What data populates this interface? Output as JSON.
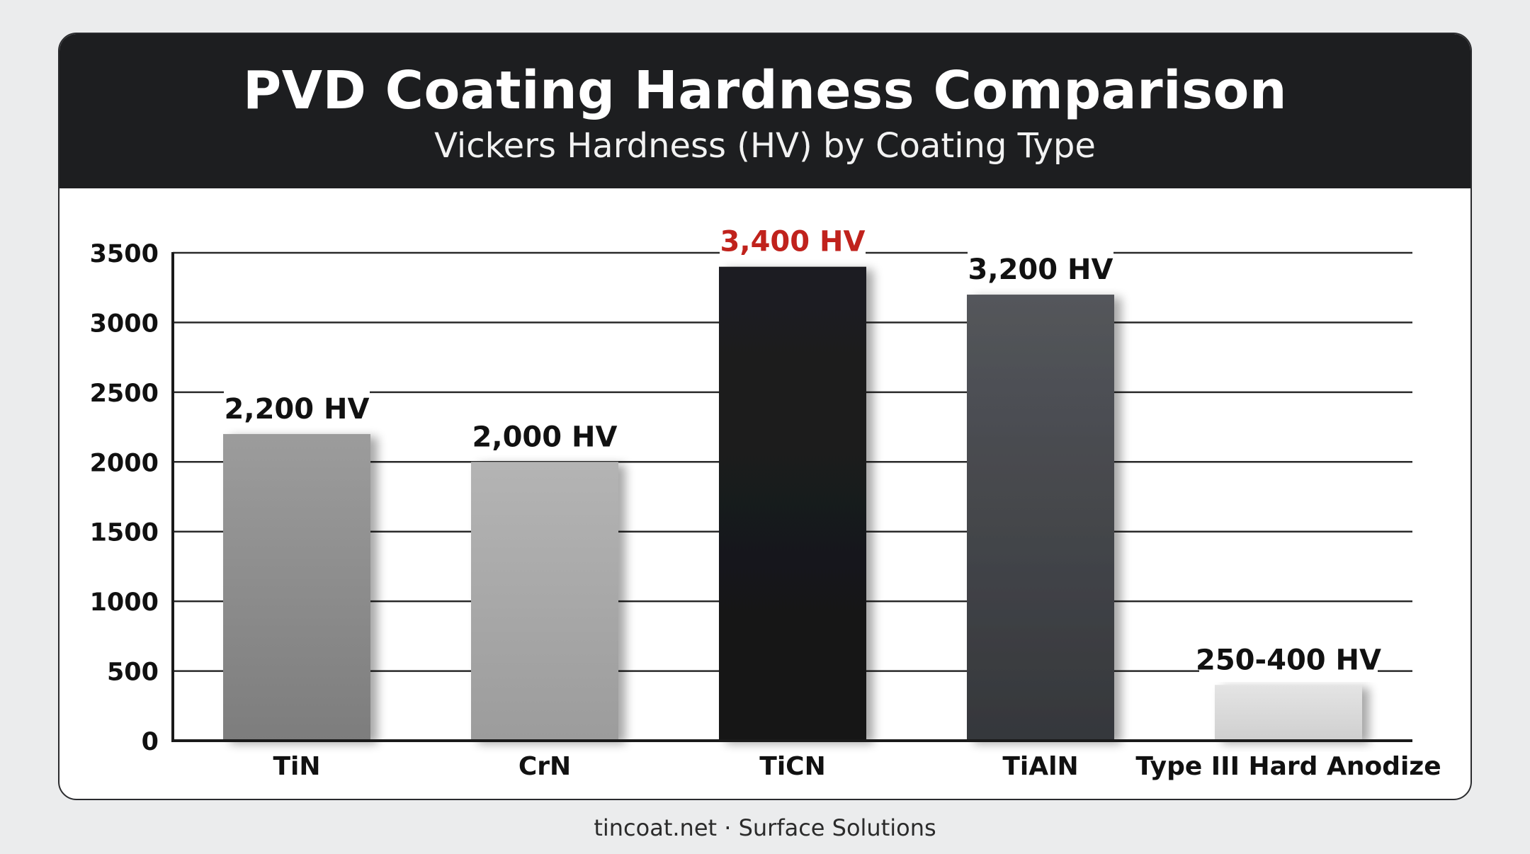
{
  "header": {
    "title": "PVD Coating Hardness Comparison",
    "subtitle": "Vickers Hardness (HV) by Coating Type"
  },
  "footer": {
    "text": "tincoat.net · Surface Solutions"
  },
  "colors": {
    "header_bg": "#1d1e20",
    "gridline": "#2a2a2a",
    "highlight_label": "#c0221c",
    "label": "#111111"
  },
  "chart_data": {
    "type": "bar",
    "title": "PVD Coating Hardness Comparison",
    "subtitle": "Vickers Hardness (HV) by Coating Type",
    "xlabel": "",
    "ylabel": "",
    "ylim": [
      0,
      3500
    ],
    "yticks": [
      0,
      500,
      1000,
      1500,
      2000,
      2500,
      3000,
      3500
    ],
    "grid": true,
    "categories": [
      "TiN",
      "CrN",
      "TiCN",
      "TiAlN",
      "Type III Hard Anodize"
    ],
    "values": [
      2200,
      2000,
      3400,
      3200,
      400
    ],
    "value_labels": [
      "2,200 HV",
      "2,000 HV",
      "3,400 HV",
      "3,200 HV",
      "250-400 HV"
    ],
    "bar_colors": [
      [
        "#9c9c9c",
        "#7d7d7d"
      ],
      [
        "#b4b4b4",
        "#9c9c9c"
      ],
      [
        "#1e1f21",
        "#141516"
      ],
      [
        "#54565b",
        "#35373b"
      ],
      [
        "#e4e4e4",
        "#cfcfcf"
      ]
    ],
    "highlight_index": 2
  }
}
